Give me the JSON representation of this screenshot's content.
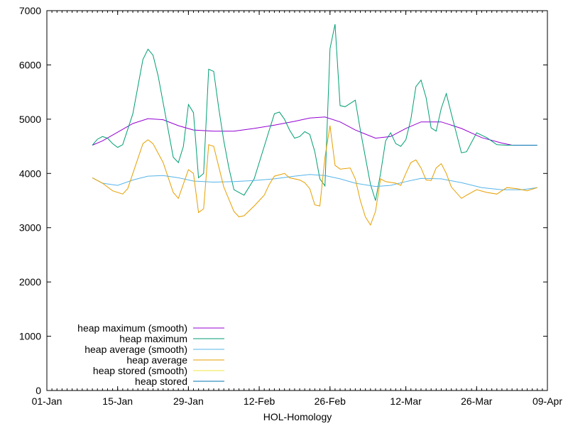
{
  "chart_data": {
    "type": "line",
    "title": "",
    "xlabel": "HOL-Homology",
    "ylabel": "",
    "xlim": [
      "2024-01-01",
      "2024-04-09"
    ],
    "ylim": [
      0,
      7000
    ],
    "x_ticks": [
      "2024-01-01",
      "2024-01-15",
      "2024-01-29",
      "2024-02-12",
      "2024-02-26",
      "2024-03-12",
      "2024-03-26",
      "2024-04-09"
    ],
    "x_tick_labels": [
      "01-Jan",
      "15-Jan",
      "29-Jan",
      "12-Feb",
      "26-Feb",
      "12-Mar",
      "26-Mar",
      "09-Apr"
    ],
    "y_ticks": [
      0,
      1000,
      2000,
      3000,
      4000,
      5000,
      6000,
      7000
    ],
    "grid": false,
    "legend_position": "bottom-left",
    "series": [
      {
        "name": "heap maximum (smooth)",
        "color": "#9400d3",
        "x": [
          "2024-01-10",
          "2024-01-12",
          "2024-01-15",
          "2024-01-18",
          "2024-01-21",
          "2024-01-24",
          "2024-01-27",
          "2024-01-30",
          "2024-02-03",
          "2024-02-07",
          "2024-02-11",
          "2024-02-15",
          "2024-02-19",
          "2024-02-22",
          "2024-02-25",
          "2024-02-28",
          "2024-03-02",
          "2024-03-06",
          "2024-03-09",
          "2024-03-12",
          "2024-03-15",
          "2024-03-19",
          "2024-03-23",
          "2024-03-27",
          "2024-03-31",
          "2024-04-02"
        ],
        "y": [
          4520,
          4600,
          4760,
          4920,
          5010,
          4990,
          4880,
          4800,
          4780,
          4780,
          4830,
          4890,
          4960,
          5020,
          5040,
          4950,
          4800,
          4650,
          4680,
          4830,
          4950,
          4950,
          4830,
          4660,
          4560,
          4520
        ]
      },
      {
        "name": "heap maximum",
        "color": "#009e73",
        "x": [
          "2024-01-10",
          "2024-01-11",
          "2024-01-12",
          "2024-01-13",
          "2024-01-14",
          "2024-01-15",
          "2024-01-16",
          "2024-01-18",
          "2024-01-19",
          "2024-01-20",
          "2024-01-21",
          "2024-01-22",
          "2024-01-23",
          "2024-01-24",
          "2024-01-25",
          "2024-01-26",
          "2024-01-27",
          "2024-01-28",
          "2024-01-29",
          "2024-01-30",
          "2024-01-31",
          "2024-02-01",
          "2024-02-02",
          "2024-02-03",
          "2024-02-04",
          "2024-02-05",
          "2024-02-06",
          "2024-02-07",
          "2024-02-09",
          "2024-02-11",
          "2024-02-12",
          "2024-02-13",
          "2024-02-14",
          "2024-02-15",
          "2024-02-16",
          "2024-02-17",
          "2024-02-18",
          "2024-02-19",
          "2024-02-20",
          "2024-02-21",
          "2024-02-22",
          "2024-02-23",
          "2024-02-24",
          "2024-02-25",
          "2024-02-26",
          "2024-02-27",
          "2024-02-28",
          "2024-02-29",
          "2024-03-02",
          "2024-03-03",
          "2024-03-04",
          "2024-03-05",
          "2024-03-06",
          "2024-03-07",
          "2024-03-08",
          "2024-03-09",
          "2024-03-10",
          "2024-03-11",
          "2024-03-12",
          "2024-03-13",
          "2024-03-14",
          "2024-03-15",
          "2024-03-16",
          "2024-03-17",
          "2024-03-18",
          "2024-03-19",
          "2024-03-20",
          "2024-03-21",
          "2024-03-23",
          "2024-03-24",
          "2024-03-26",
          "2024-03-28",
          "2024-03-30",
          "2024-04-01",
          "2024-04-05"
        ],
        "y": [
          4520,
          4630,
          4680,
          4650,
          4550,
          4480,
          4530,
          5100,
          5600,
          6100,
          6290,
          6180,
          5800,
          5300,
          4800,
          4300,
          4200,
          4500,
          5270,
          5120,
          3920,
          4000,
          5920,
          5880,
          5200,
          4600,
          4100,
          3700,
          3600,
          3900,
          4200,
          4500,
          4800,
          5100,
          5130,
          5000,
          4800,
          4650,
          4680,
          4770,
          4720,
          4400,
          3900,
          3770,
          6300,
          6750,
          5250,
          5230,
          5350,
          4800,
          4300,
          3800,
          3500,
          4000,
          4600,
          4750,
          4550,
          4500,
          4620,
          5000,
          5600,
          5720,
          5400,
          4840,
          4780,
          5200,
          5470,
          5100,
          4380,
          4400,
          4750,
          4660,
          4530,
          4520,
          4520
        ]
      },
      {
        "name": "heap average (smooth)",
        "color": "#56b4e9",
        "x": [
          "2024-01-10",
          "2024-01-12",
          "2024-01-15",
          "2024-01-18",
          "2024-01-21",
          "2024-01-24",
          "2024-01-27",
          "2024-01-30",
          "2024-02-03",
          "2024-02-07",
          "2024-02-11",
          "2024-02-15",
          "2024-02-19",
          "2024-02-22",
          "2024-02-25",
          "2024-02-28",
          "2024-03-02",
          "2024-03-06",
          "2024-03-09",
          "2024-03-12",
          "2024-03-15",
          "2024-03-19",
          "2024-03-23",
          "2024-03-27",
          "2024-03-31",
          "2024-04-04",
          "2024-04-07"
        ],
        "y": [
          3920,
          3820,
          3780,
          3880,
          3950,
          3960,
          3920,
          3860,
          3840,
          3850,
          3870,
          3900,
          3950,
          3980,
          3960,
          3900,
          3820,
          3760,
          3780,
          3850,
          3910,
          3900,
          3830,
          3740,
          3700,
          3700,
          3740
        ]
      },
      {
        "name": "heap average",
        "color": "#e69f00",
        "x": [
          "2024-01-10",
          "2024-01-12",
          "2024-01-14",
          "2024-01-16",
          "2024-01-17",
          "2024-01-18",
          "2024-01-20",
          "2024-01-21",
          "2024-01-22",
          "2024-01-24",
          "2024-01-26",
          "2024-01-27",
          "2024-01-29",
          "2024-01-30",
          "2024-01-31",
          "2024-02-01",
          "2024-02-02",
          "2024-02-03",
          "2024-02-05",
          "2024-02-07",
          "2024-02-08",
          "2024-02-09",
          "2024-02-11",
          "2024-02-13",
          "2024-02-14",
          "2024-02-15",
          "2024-02-17",
          "2024-02-18",
          "2024-02-20",
          "2024-02-21",
          "2024-02-22",
          "2024-02-23",
          "2024-02-24",
          "2024-02-25",
          "2024-02-26",
          "2024-02-27",
          "2024-02-28",
          "2024-03-01",
          "2024-03-02",
          "2024-03-03",
          "2024-03-04",
          "2024-03-05",
          "2024-03-06",
          "2024-03-07",
          "2024-03-08",
          "2024-03-10",
          "2024-03-11",
          "2024-03-12",
          "2024-03-13",
          "2024-03-14",
          "2024-03-15",
          "2024-03-16",
          "2024-03-17",
          "2024-03-18",
          "2024-03-19",
          "2024-03-20",
          "2024-03-21",
          "2024-03-23",
          "2024-03-24",
          "2024-03-26",
          "2024-03-28",
          "2024-03-30",
          "2024-04-01",
          "2024-04-03",
          "2024-04-05",
          "2024-04-07"
        ],
        "y": [
          3920,
          3820,
          3680,
          3620,
          3720,
          4000,
          4550,
          4620,
          4550,
          4200,
          3650,
          3540,
          4070,
          4000,
          3280,
          3350,
          4530,
          4500,
          3750,
          3300,
          3200,
          3220,
          3400,
          3600,
          3800,
          3950,
          4000,
          3920,
          3880,
          3830,
          3720,
          3420,
          3400,
          4300,
          4880,
          4150,
          4080,
          4100,
          3900,
          3500,
          3200,
          3050,
          3300,
          3900,
          3850,
          3820,
          3780,
          4000,
          4200,
          4250,
          4100,
          3880,
          3870,
          4100,
          4180,
          4000,
          3750,
          3540,
          3600,
          3700,
          3650,
          3620,
          3740,
          3720,
          3680,
          3740
        ]
      },
      {
        "name": "heap stored (smooth)",
        "color": "#f0e442",
        "x": [
          "2024-04-02",
          "2024-04-07"
        ],
        "y": [
          4520,
          4520
        ]
      },
      {
        "name": "heap stored",
        "color": "#0072b2",
        "x": [
          "2024-04-02",
          "2024-04-07"
        ],
        "y": [
          4520,
          4520
        ]
      }
    ]
  }
}
